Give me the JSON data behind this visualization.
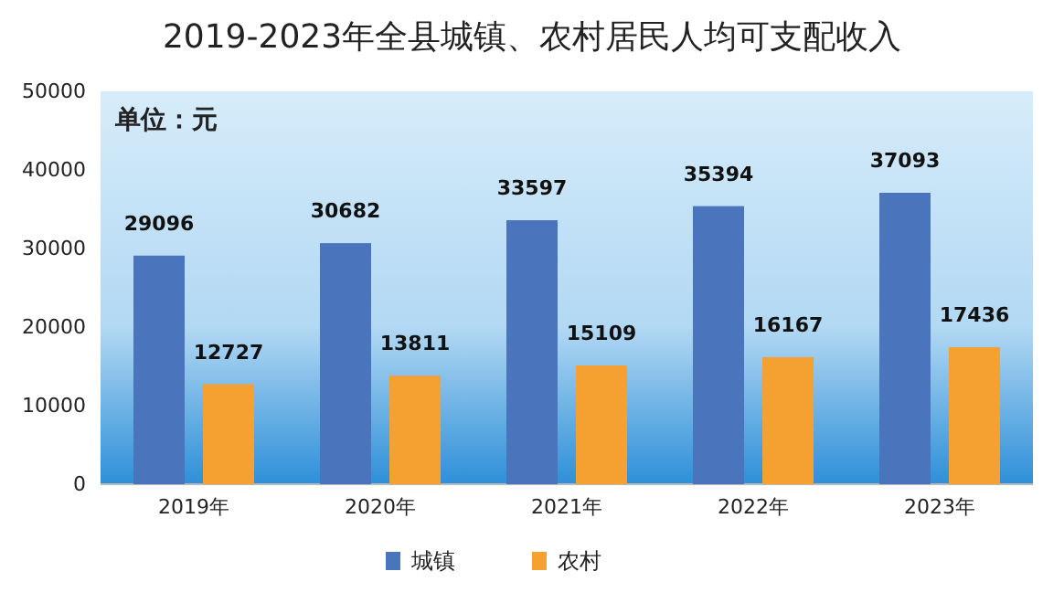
{
  "chart_data": {
    "type": "bar",
    "title": "2019-2023年全县城镇、农村居民人均可支配收入",
    "annotations": [
      "单位：元"
    ],
    "categories": [
      "2019年",
      "2020年",
      "2021年",
      "2022年",
      "2023年"
    ],
    "series": [
      {
        "name": "城镇",
        "color": "#4a74bc",
        "values": [
          29096,
          30682,
          33597,
          35394,
          37093
        ]
      },
      {
        "name": "农村",
        "color": "#f5a132",
        "values": [
          12727,
          13811,
          15109,
          16167,
          17436
        ]
      }
    ],
    "ylim": [
      0,
      50000
    ],
    "yticks": [
      0,
      10000,
      20000,
      30000,
      40000,
      50000
    ],
    "data_labels": true,
    "legend": "bottom"
  }
}
